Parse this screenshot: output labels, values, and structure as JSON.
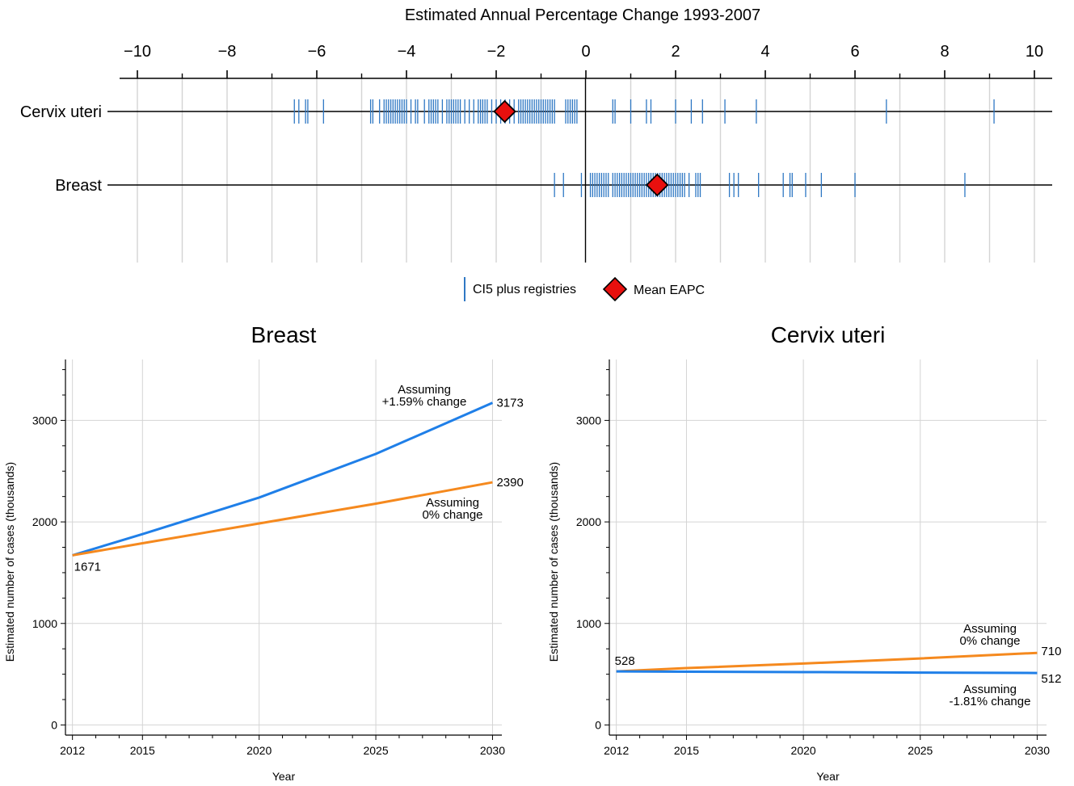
{
  "colors": {
    "registry_tick": "#2f78c4",
    "mean_marker": "#e8100e",
    "line_blue": "#1f7fe8",
    "line_orange": "#f5891e",
    "grid": "#d4d4d4",
    "axis": "#000000"
  },
  "legend": {
    "registries_label": "CI5 plus registries",
    "mean_label": "Mean EAPC"
  },
  "chart_data": [
    {
      "type": "scatter",
      "title": "Estimated Annual Percentage Change 1993-2007",
      "x_axis_position": "top",
      "xlim": [
        -10.5,
        10.4
      ],
      "xticks": [
        -10,
        -8,
        -6,
        -4,
        -2,
        0,
        2,
        4,
        6,
        8,
        10
      ],
      "xtick_labels": [
        "−10",
        "−8",
        "−6",
        "−4",
        "−2",
        "0",
        "2",
        "4",
        "6",
        "8",
        "10"
      ],
      "minor_xticks": [
        -9,
        -7,
        -5,
        -3,
        -1,
        1,
        3,
        5,
        7,
        9
      ],
      "grid": true,
      "legend_position": "bottom-center",
      "categories": [
        "Cervix uteri",
        "Breast"
      ],
      "series": [
        {
          "name": "CI5 plus registries",
          "marker": "vertical-tick",
          "values": {
            "Cervix uteri": [
              -6.5,
              -6.4,
              -6.25,
              -6.2,
              -5.85,
              -4.8,
              -4.75,
              -4.6,
              -4.5,
              -4.45,
              -4.4,
              -4.35,
              -4.3,
              -4.25,
              -4.2,
              -4.15,
              -4.1,
              -4.05,
              -4.0,
              -3.9,
              -3.8,
              -3.75,
              -3.6,
              -3.5,
              -3.45,
              -3.4,
              -3.35,
              -3.3,
              -3.2,
              -3.1,
              -3.05,
              -3.0,
              -2.95,
              -2.9,
              -2.85,
              -2.8,
              -2.7,
              -2.6,
              -2.5,
              -2.4,
              -2.35,
              -2.3,
              -2.25,
              -2.2,
              -2.1,
              -2.0,
              -1.9,
              -1.8,
              -1.7,
              -1.6,
              -1.5,
              -1.45,
              -1.4,
              -1.35,
              -1.3,
              -1.25,
              -1.2,
              -1.15,
              -1.1,
              -1.05,
              -1.0,
              -0.95,
              -0.9,
              -0.85,
              -0.8,
              -0.75,
              -0.7,
              -0.45,
              -0.4,
              -0.35,
              -0.3,
              -0.25,
              -0.2,
              0.6,
              0.65,
              1.0,
              1.35,
              1.45,
              2.0,
              2.35,
              2.6,
              3.1,
              3.8,
              6.7,
              9.1
            ],
            "Breast": [
              -0.7,
              -0.5,
              -0.1,
              0.1,
              0.15,
              0.2,
              0.25,
              0.3,
              0.35,
              0.4,
              0.45,
              0.5,
              0.6,
              0.65,
              0.7,
              0.75,
              0.8,
              0.85,
              0.9,
              0.95,
              1.0,
              1.05,
              1.1,
              1.15,
              1.2,
              1.25,
              1.3,
              1.35,
              1.4,
              1.45,
              1.5,
              1.55,
              1.6,
              1.65,
              1.7,
              1.75,
              1.8,
              1.85,
              1.9,
              1.95,
              2.0,
              2.05,
              2.1,
              2.15,
              2.2,
              2.3,
              2.45,
              2.5,
              2.55,
              3.2,
              3.3,
              3.4,
              3.85,
              4.4,
              4.55,
              4.6,
              4.9,
              5.25,
              6.0,
              8.45
            ]
          }
        },
        {
          "name": "Mean EAPC",
          "marker": "diamond",
          "values": {
            "Cervix uteri": -1.81,
            "Breast": 1.59
          }
        }
      ]
    },
    {
      "type": "line",
      "title": "Breast",
      "xlabel": "Year",
      "ylabel": "Estimated number of cases (thousands)",
      "xlim": [
        2011.7,
        2030.4
      ],
      "ylim": [
        -100,
        3600
      ],
      "xticks": [
        2012,
        2015,
        2020,
        2025,
        2030
      ],
      "yticks": [
        0,
        1000,
        2000,
        3000
      ],
      "grid": true,
      "series": [
        {
          "color_key": "line_blue",
          "x": [
            2012,
            2015,
            2020,
            2025,
            2030
          ],
          "y": [
            1671,
            1880,
            2240,
            2670,
            3173
          ],
          "annotation_lines": [
            "Assuming",
            "+1.59% change"
          ],
          "start_label": "",
          "end_label": "3173"
        },
        {
          "color_key": "line_orange",
          "x": [
            2012,
            2015,
            2020,
            2025,
            2030
          ],
          "y": [
            1671,
            1790,
            1985,
            2180,
            2390
          ],
          "annotation_lines": [
            "Assuming",
            "0% change"
          ],
          "start_label": "1671",
          "end_label": "2390"
        }
      ]
    },
    {
      "type": "line",
      "title": "Cervix uteri",
      "xlabel": "Year",
      "ylabel": "Estimated number of cases (thousands)",
      "xlim": [
        2011.7,
        2030.4
      ],
      "ylim": [
        -100,
        3600
      ],
      "xticks": [
        2012,
        2015,
        2020,
        2025,
        2030
      ],
      "yticks": [
        0,
        1000,
        2000,
        3000
      ],
      "grid": true,
      "series": [
        {
          "color_key": "line_orange",
          "x": [
            2012,
            2015,
            2020,
            2025,
            2030
          ],
          "y": [
            528,
            560,
            605,
            655,
            710
          ],
          "annotation_lines": [
            "Assuming",
            "0% change"
          ],
          "start_label": "528",
          "end_label": "710"
        },
        {
          "color_key": "line_blue",
          "x": [
            2012,
            2015,
            2020,
            2025,
            2030
          ],
          "y": [
            528,
            525,
            521,
            516,
            512
          ],
          "annotation_lines": [
            "Assuming",
            "-1.81% change"
          ],
          "start_label": "",
          "end_label": "512"
        }
      ]
    }
  ]
}
